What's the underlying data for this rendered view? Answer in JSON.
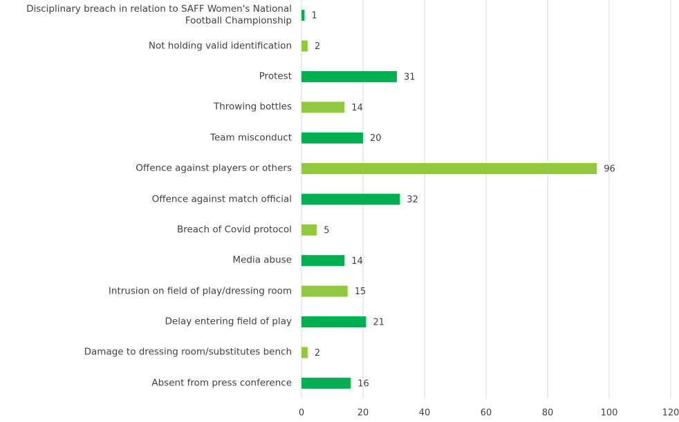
{
  "chart_data": {
    "type": "barh",
    "categories": [
      "Disciplinary breach in relation to SAFF Women's National Football Championship",
      "Not holding valid identification",
      "Protest",
      "Throwing bottles",
      "Team misconduct",
      "Offence against players or others",
      "Offence against match official",
      "Breach of Covid protocol",
      "Media abuse",
      "Intrusion on field of play/dressing room",
      "Delay entering field of play",
      "Damage to dressing room/substitutes bench",
      "Absent from press conference"
    ],
    "values": [
      1,
      2,
      31,
      14,
      20,
      96,
      32,
      5,
      14,
      15,
      21,
      2,
      16
    ],
    "colors": [
      "#00b050",
      "#92c83e",
      "#00b050",
      "#92c83e",
      "#00b050",
      "#92c83e",
      "#00b050",
      "#92c83e",
      "#00b050",
      "#92c83e",
      "#00b050",
      "#92c83e",
      "#00b050"
    ],
    "xlim": [
      0,
      120
    ],
    "xticks": [
      0,
      20,
      40,
      60,
      80,
      100,
      120
    ],
    "grid": true
  }
}
